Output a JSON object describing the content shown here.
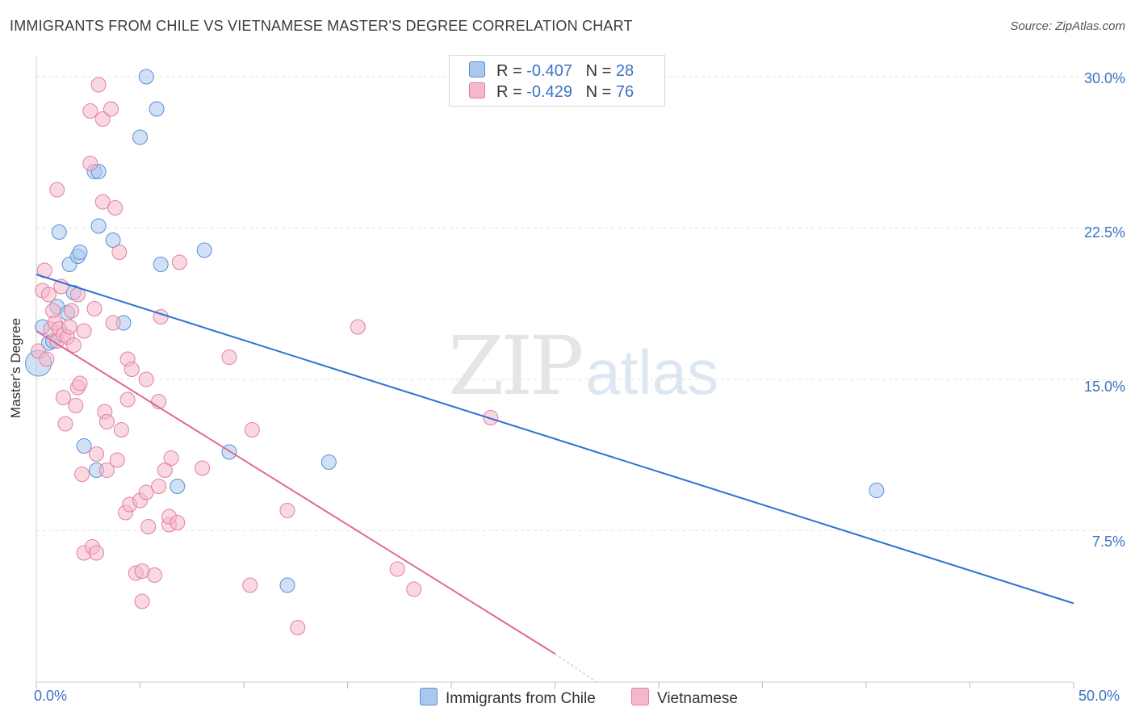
{
  "title": "IMMIGRANTS FROM CHILE VS VIETNAMESE MASTER'S DEGREE CORRELATION CHART",
  "source": "Source: ZipAtlas.com",
  "watermark": {
    "zip": "ZIP",
    "atlas": "atlas"
  },
  "legend_top": [
    {
      "r_label": "R =",
      "r_value": "-0.407",
      "n_label": "N =",
      "n_value": "28",
      "color": "#a9c8ee"
    },
    {
      "r_label": "R =",
      "r_value": "-0.429",
      "n_label": "N =",
      "n_value": "76",
      "color": "#f5b8cb"
    }
  ],
  "chart_data": {
    "type": "scatter",
    "title": "IMMIGRANTS FROM CHILE VS VIETNAMESE MASTER'S DEGREE CORRELATION CHART",
    "xlabel": "",
    "ylabel": "Master's Degree",
    "xlim": [
      0,
      50
    ],
    "ylim": [
      0,
      31
    ],
    "x_tick_labels": [
      "0.0%",
      "50.0%"
    ],
    "y_ticks": [
      7.5,
      15.0,
      22.5,
      30.0
    ],
    "y_tick_labels": [
      "7.5%",
      "15.0%",
      "22.5%",
      "30.0%"
    ],
    "grid": true,
    "series": [
      {
        "name": "Immigrants from Chile",
        "color": "#a9c8ee",
        "edge": "#5b8fd6",
        "line_color": "#2f72d0",
        "trend": {
          "x0": 0,
          "y0": 20.2,
          "x1": 50,
          "y1": 3.9
        },
        "points": [
          [
            0.1,
            15.8
          ],
          [
            0.3,
            17.6
          ],
          [
            0.6,
            16.8
          ],
          [
            1.0,
            18.6
          ],
          [
            1.1,
            22.3
          ],
          [
            1.5,
            18.3
          ],
          [
            1.6,
            20.7
          ],
          [
            1.8,
            19.3
          ],
          [
            2.0,
            21.1
          ],
          [
            2.1,
            21.3
          ],
          [
            2.3,
            11.7
          ],
          [
            2.8,
            25.3
          ],
          [
            2.9,
            10.5
          ],
          [
            3.0,
            25.3
          ],
          [
            3.0,
            22.6
          ],
          [
            3.7,
            21.9
          ],
          [
            4.2,
            17.8
          ],
          [
            5.0,
            27.0
          ],
          [
            5.3,
            30.0
          ],
          [
            5.8,
            28.4
          ],
          [
            6.0,
            20.7
          ],
          [
            6.8,
            9.7
          ],
          [
            8.1,
            21.4
          ],
          [
            9.3,
            11.4
          ],
          [
            12.1,
            4.8
          ],
          [
            14.1,
            10.9
          ],
          [
            40.5,
            9.5
          ],
          [
            0.8,
            16.9
          ]
        ]
      },
      {
        "name": "Vietnamese",
        "color": "#f5b8cb",
        "edge": "#e27fa0",
        "line_color": "#e06892",
        "trend": {
          "x0": 0,
          "y0": 17.4,
          "x1": 25,
          "y1": 1.4
        },
        "trend_dashed": {
          "x0": 25,
          "y0": 1.4,
          "x1": 27,
          "y1": 0.0
        },
        "points": [
          [
            0.1,
            16.4
          ],
          [
            0.3,
            19.4
          ],
          [
            0.4,
            20.4
          ],
          [
            0.6,
            19.2
          ],
          [
            0.7,
            17.5
          ],
          [
            0.8,
            18.4
          ],
          [
            0.9,
            17.8
          ],
          [
            1.0,
            24.4
          ],
          [
            1.0,
            16.9
          ],
          [
            1.1,
            17.5
          ],
          [
            1.2,
            19.6
          ],
          [
            1.3,
            17.2
          ],
          [
            1.3,
            14.1
          ],
          [
            1.5,
            17.1
          ],
          [
            1.6,
            17.6
          ],
          [
            1.7,
            18.4
          ],
          [
            1.8,
            16.7
          ],
          [
            1.9,
            13.7
          ],
          [
            2.0,
            14.6
          ],
          [
            2.0,
            19.2
          ],
          [
            2.1,
            14.8
          ],
          [
            2.2,
            10.3
          ],
          [
            2.3,
            6.4
          ],
          [
            2.3,
            17.4
          ],
          [
            2.6,
            25.7
          ],
          [
            2.6,
            28.3
          ],
          [
            2.7,
            6.7
          ],
          [
            2.8,
            18.5
          ],
          [
            2.9,
            6.4
          ],
          [
            2.9,
            11.3
          ],
          [
            3.0,
            29.6
          ],
          [
            3.2,
            27.9
          ],
          [
            3.2,
            23.8
          ],
          [
            3.3,
            13.4
          ],
          [
            3.4,
            10.5
          ],
          [
            3.4,
            12.9
          ],
          [
            3.6,
            28.4
          ],
          [
            3.7,
            17.8
          ],
          [
            3.8,
            23.5
          ],
          [
            4.0,
            21.3
          ],
          [
            4.1,
            12.5
          ],
          [
            4.3,
            8.4
          ],
          [
            4.4,
            14.0
          ],
          [
            4.4,
            16.0
          ],
          [
            4.5,
            8.8
          ],
          [
            4.6,
            15.5
          ],
          [
            4.8,
            5.4
          ],
          [
            5.0,
            9.0
          ],
          [
            5.1,
            5.5
          ],
          [
            5.1,
            4.0
          ],
          [
            5.3,
            9.4
          ],
          [
            5.3,
            15.0
          ],
          [
            5.4,
            7.7
          ],
          [
            5.7,
            5.3
          ],
          [
            5.9,
            9.7
          ],
          [
            5.9,
            13.9
          ],
          [
            6.0,
            18.1
          ],
          [
            6.2,
            10.5
          ],
          [
            6.4,
            7.8
          ],
          [
            6.4,
            8.2
          ],
          [
            6.5,
            11.1
          ],
          [
            6.8,
            7.9
          ],
          [
            6.9,
            20.8
          ],
          [
            8.0,
            10.6
          ],
          [
            9.3,
            16.1
          ],
          [
            10.3,
            4.8
          ],
          [
            10.4,
            12.5
          ],
          [
            12.1,
            8.5
          ],
          [
            12.6,
            2.7
          ],
          [
            15.5,
            17.6
          ],
          [
            17.4,
            5.6
          ],
          [
            18.2,
            4.6
          ],
          [
            21.9,
            13.1
          ],
          [
            1.4,
            12.8
          ],
          [
            0.5,
            16.0
          ],
          [
            3.9,
            11.0
          ]
        ]
      }
    ]
  },
  "bottom_legend": [
    {
      "label": "Immigrants from Chile",
      "color": "#a9c8ee"
    },
    {
      "label": "Vietnamese",
      "color": "#f5b8cb"
    }
  ]
}
